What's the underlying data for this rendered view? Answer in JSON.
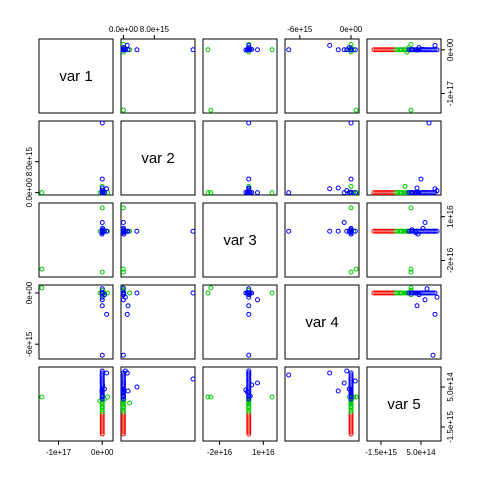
{
  "chart_data": {
    "type": "scatter",
    "title": "",
    "kind": "scatterplot-matrix",
    "variables": [
      "var 1",
      "var 2",
      "var 3",
      "var 4",
      "var 5"
    ],
    "ranges": [
      [
        -1.4e+17,
        2e+16
      ],
      [
        -100000000000000.0,
        1.8e+16
      ],
      [
        -3e+16,
        1.8e+16
      ],
      [
        -7500000000000000.0,
        700000000000000.0
      ],
      [
        -2100000000000000.0,
        1400000000000000.0
      ]
    ],
    "ticks": {
      "var 1": {
        "side": "bottom",
        "values": [
          -1e+17,
          0
        ],
        "labels": [
          "-1e+17",
          "0e+00"
        ]
      },
      "var 2": {
        "side": "top",
        "values": [
          0,
          8000000000000000.0
        ],
        "labels": [
          "0.0e+00",
          "8.0e+15"
        ]
      },
      "var 3": {
        "side": "bottom",
        "values": [
          -2e+16,
          1e+16
        ],
        "labels": [
          "-2e+16",
          "1e+16"
        ]
      },
      "var 4": {
        "side": "top",
        "values": [
          -6000000000000000.0,
          0
        ],
        "labels": [
          "-6e+15",
          "0e+00"
        ]
      },
      "var 5": {
        "side": "bottom",
        "values": [
          -1500000000000000.0,
          500000000000000.0
        ],
        "labels": [
          "-1.5e+15",
          "5.0e+14"
        ]
      },
      "row 1": {
        "side": "right",
        "values": [
          0,
          -1e+17
        ],
        "labels": [
          "0e+00",
          "-1e+17"
        ]
      },
      "row 2": {
        "side": "left",
        "values": [
          0,
          8000000000000000.0
        ],
        "labels": [
          "0.0e+00",
          "8.0e+15"
        ]
      },
      "row 3": {
        "side": "right",
        "values": [
          1e+16,
          -2e+16
        ],
        "labels": [
          "1e+16",
          "-2e+16"
        ]
      },
      "row 4": {
        "side": "left",
        "values": [
          0,
          -6000000000000000.0
        ],
        "labels": [
          "0e+00",
          "-6e+15"
        ]
      },
      "row 5": {
        "side": "right",
        "values": [
          500000000000000.0,
          -1500000000000000.0
        ],
        "labels": [
          "5.0e+14",
          "-1.5e+15"
        ]
      }
    },
    "groups": [
      {
        "color": "#ff0000",
        "points": [
          [
            0,
            0,
            0,
            0,
            -1850000000000000.0
          ],
          [
            0,
            0,
            0,
            0,
            -1750000000000000.0
          ],
          [
            0,
            0,
            0,
            0,
            -1650000000000000.0
          ],
          [
            0,
            0,
            0,
            0,
            -1550000000000000.0
          ],
          [
            0,
            0,
            0,
            0,
            -1450000000000000.0
          ],
          [
            0,
            0,
            0,
            0,
            -1350000000000000.0
          ],
          [
            0,
            0,
            0,
            0,
            -1250000000000000.0
          ],
          [
            0,
            0,
            0,
            0,
            -1150000000000000.0
          ],
          [
            0,
            0,
            0,
            0,
            -1050000000000000.0
          ],
          [
            0,
            0,
            0,
            0,
            -950000000000000.0
          ],
          [
            0,
            0,
            0,
            0,
            -850000000000000.0
          ]
        ]
      },
      {
        "color": "#00cc00",
        "points": [
          [
            0,
            0,
            0,
            0,
            -750000000000000.0
          ],
          [
            0,
            0,
            0,
            0,
            -650000000000000.0
          ],
          [
            0,
            0,
            0,
            0,
            -550000000000000.0
          ],
          [
            0,
            0,
            0,
            0,
            -450000000000000.0
          ],
          [
            0,
            0,
            0,
            0,
            -350000000000000.0
          ],
          [
            0,
            0,
            0,
            0,
            -250000000000000.0
          ],
          [
            0,
            0,
            0,
            0,
            -150000000000000.0
          ],
          [
            -1.38e+17,
            0,
            -2.6e+16,
            600000000000000.0,
            0
          ],
          [
            0,
            -50000000000000.0,
            0,
            0,
            -500000000000000.0
          ],
          [
            0,
            1600000000000000.0,
            0,
            0,
            -300000000000000.0
          ],
          [
            -5000000000000000.0,
            0,
            0,
            0,
            -200000000000000.0
          ],
          [
            5000000000000000.0,
            0,
            0,
            0,
            -100000000000000.0
          ],
          [
            1.2e+16,
            0,
            0,
            0,
            0
          ],
          [
            0,
            0,
            1.6e+16,
            0,
            0
          ],
          [
            0,
            0,
            -2.8e+16,
            0,
            0
          ],
          [
            0,
            0,
            0,
            -200000000000000.0,
            0
          ],
          [
            0,
            0,
            0,
            300000000000000.0,
            0
          ]
        ]
      },
      {
        "color": "#0000ff",
        "points": [
          [
            0,
            0,
            0,
            0,
            -100000000000000.0
          ],
          [
            0,
            0,
            0,
            0,
            0
          ],
          [
            0,
            0,
            0,
            0,
            100000000000000.0
          ],
          [
            0,
            0,
            0,
            0,
            200000000000000.0
          ],
          [
            0,
            0,
            0,
            0,
            300000000000000.0
          ],
          [
            0,
            0,
            0,
            0,
            400000000000000.0
          ],
          [
            0,
            0,
            0,
            0,
            500000000000000.0
          ],
          [
            0,
            0,
            0,
            0,
            600000000000000.0
          ],
          [
            0,
            0,
            0,
            0,
            700000000000000.0
          ],
          [
            0,
            0,
            0,
            0,
            800000000000000.0
          ],
          [
            0,
            0,
            0,
            0,
            900000000000000.0
          ],
          [
            0,
            0,
            0,
            0,
            1000000000000000.0
          ],
          [
            0,
            0,
            0,
            0,
            1100000000000000.0
          ],
          [
            0,
            0,
            0,
            0,
            1200000000000000.0
          ],
          [
            500000000000000.0,
            0,
            1000000000000000.0,
            0,
            50000000000000.0
          ],
          [
            -300000000000000.0,
            0,
            -1000000000000000.0,
            0,
            250000000000000.0
          ],
          [
            800000000000000.0,
            50000000000000.0,
            2000000000000000.0,
            0,
            600000000000000.0
          ],
          [
            -500000000000000.0,
            100000000000000.0,
            -2000000000000000.0,
            0,
            350000000000000.0
          ],
          [
            0,
            1.8e+16,
            0,
            0,
            900000000000000.0
          ],
          [
            0,
            3500000000000000.0,
            0,
            0,
            500000000000000.0
          ],
          [
            0,
            1200000000000000.0,
            0,
            -1500000000000000.0,
            300000000000000.0
          ],
          [
            1e+16,
            1000000000000000.0,
            0,
            -2500000000000000.0,
            1200000000000000.0
          ],
          [
            0,
            500000000000000.0,
            0,
            -500000000000000.0,
            1300000000000000.0
          ],
          [
            0,
            0,
            0,
            -7300000000000000.0,
            1100000000000000.0
          ],
          [
            5000000000000000.0,
            0,
            0,
            -200000000000000.0,
            400000000000000.0
          ],
          [
            0,
            0,
            6000000000000000.0,
            -800000000000000.0,
            700000000000000.0
          ],
          [
            0,
            0,
            0,
            500000000000000.0,
            800000000000000.0
          ]
        ]
      }
    ]
  }
}
